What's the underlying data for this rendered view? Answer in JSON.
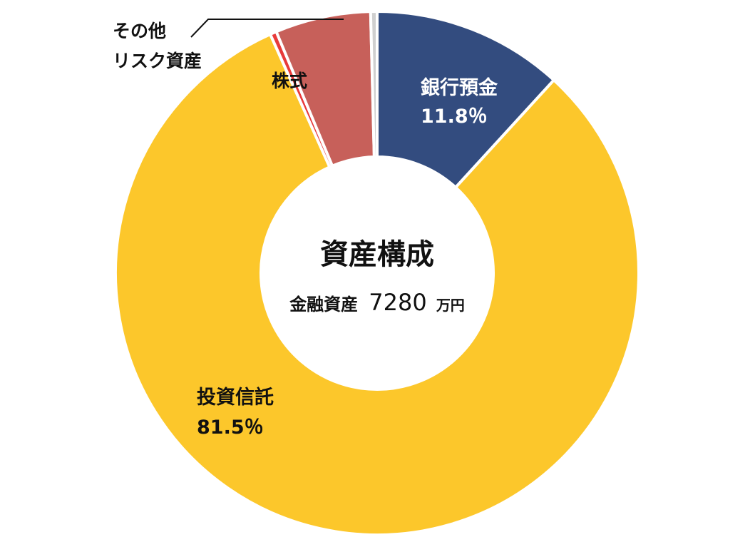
{
  "chart_data": {
    "type": "pie",
    "subtype": "donut",
    "title": "資産構成",
    "subtitle": "金融資産",
    "total": {
      "value": "7280",
      "unit": "万円"
    },
    "slices": [
      {
        "name": "銀行預金",
        "value": 11.8,
        "value_label": "11.8％",
        "color": "#334c7f"
      },
      {
        "name": "投資信託",
        "value": 81.5,
        "value_label": "81.5％",
        "color": "#fcc72b"
      },
      {
        "name": "その他リスク資産",
        "value": 0.4,
        "value_label": "",
        "color": "#e83a3a"
      },
      {
        "name": "株式",
        "value": 5.9,
        "value_label": "",
        "color": "#c7605a"
      },
      {
        "name": "",
        "value": 0.4,
        "value_label": "",
        "color": "#cfcfcf"
      }
    ],
    "labels": {
      "bank": {
        "line1": "銀行預金",
        "line2": "11.8％"
      },
      "fund": {
        "line1": "投資信託",
        "line2": "81.5％"
      },
      "stock": {
        "line1": "株式"
      },
      "other": {
        "line1": "その他",
        "line2": "リスク資産"
      }
    }
  }
}
